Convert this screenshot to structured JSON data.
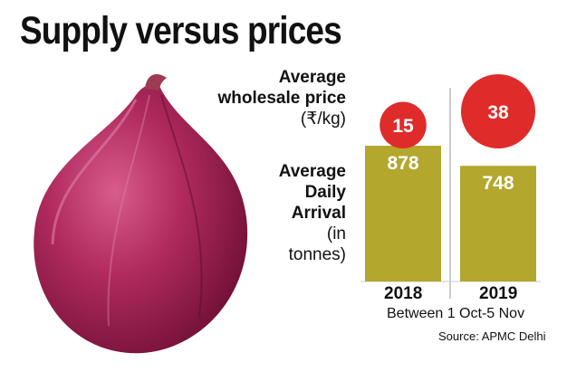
{
  "title": "Supply versus prices",
  "labels": {
    "price_line1": "Average",
    "price_line2": "wholesale price",
    "price_unit": "(₹/kg)",
    "arrival_line1": "Average",
    "arrival_line2": "Daily",
    "arrival_line3": "Arrival",
    "arrival_unit1": "(in",
    "arrival_unit2": "tonnes)"
  },
  "period": "Between 1 Oct-5 Nov",
  "source": "Source: APMC Delhi",
  "colors": {
    "bar": "#b3a72e",
    "bubble": "#e02b2b",
    "onion": "#9a1a4a"
  },
  "chart_data": {
    "type": "bar",
    "title": "Supply versus prices",
    "categories": [
      "2018",
      "2019"
    ],
    "series": [
      {
        "name": "Average Daily Arrival (in tonnes)",
        "values": [
          878,
          748
        ]
      },
      {
        "name": "Average wholesale price (₹/kg)",
        "values": [
          15,
          38
        ]
      }
    ],
    "bar_labels": [
      "878",
      "748"
    ],
    "bubble_labels": [
      "15",
      "38"
    ],
    "xlabel": "Between 1 Oct-5 Nov",
    "ylabel": ""
  }
}
